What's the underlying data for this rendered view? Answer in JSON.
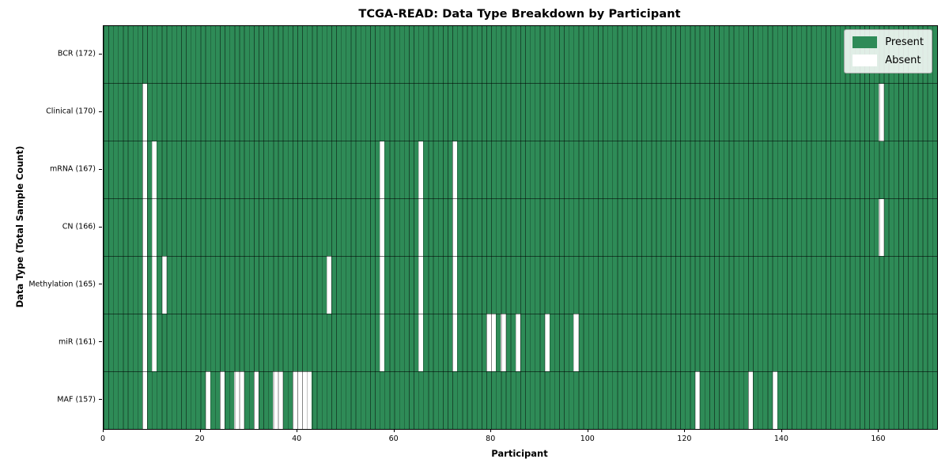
{
  "title": "TCGA-READ: Data Type Breakdown by Participant",
  "xlabel": "Participant",
  "ylabel": "Data Type (Total Sample Count)",
  "legend": {
    "present_label": "Present",
    "absent_label": "Absent"
  },
  "colors": {
    "present": "#2e8b57",
    "absent": "#ffffff",
    "cell_edge": "rgba(0,0,0,0.48)",
    "row_separator": "rgba(0,0,0,0.55)",
    "legend_bg": "rgba(255,255,255,0.85)"
  },
  "chart_data": {
    "type": "heatmap",
    "title": "TCGA-READ: Data Type Breakdown by Participant",
    "xlabel": "Participant",
    "ylabel": "Data Type (Total Sample Count)",
    "n_participants": 172,
    "x_range": [
      0,
      172
    ],
    "x_ticks": [
      0,
      20,
      40,
      60,
      80,
      100,
      120,
      140,
      160
    ],
    "grid": "cell-edges",
    "legend_position": "upper right",
    "legend_entries": [
      "Present",
      "Absent"
    ],
    "rows": [
      {
        "label": "BCR (172)",
        "data_type": "BCR",
        "total_sample_count": 172,
        "absent_participants": []
      },
      {
        "label": "Clinical (170)",
        "data_type": "Clinical",
        "total_sample_count": 170,
        "absent_participants": [
          8,
          160
        ]
      },
      {
        "label": "mRNA (167)",
        "data_type": "mRNA",
        "total_sample_count": 167,
        "absent_participants": [
          8,
          10,
          57,
          65,
          72
        ]
      },
      {
        "label": "CN (166)",
        "data_type": "CN",
        "total_sample_count": 166,
        "absent_participants": [
          8,
          10,
          57,
          65,
          72,
          160
        ]
      },
      {
        "label": "Methylation (165)",
        "data_type": "Methylation",
        "total_sample_count": 165,
        "absent_participants": [
          8,
          10,
          12,
          46,
          57,
          65,
          72
        ]
      },
      {
        "label": "miR (161)",
        "data_type": "miR",
        "total_sample_count": 161,
        "absent_participants": [
          8,
          10,
          57,
          65,
          72,
          79,
          80,
          82,
          85,
          91,
          97
        ]
      },
      {
        "label": "MAF (157)",
        "data_type": "MAF",
        "total_sample_count": 157,
        "absent_participants": [
          8,
          21,
          24,
          27,
          28,
          31,
          35,
          36,
          39,
          40,
          41,
          42,
          122,
          133,
          138
        ]
      }
    ]
  }
}
